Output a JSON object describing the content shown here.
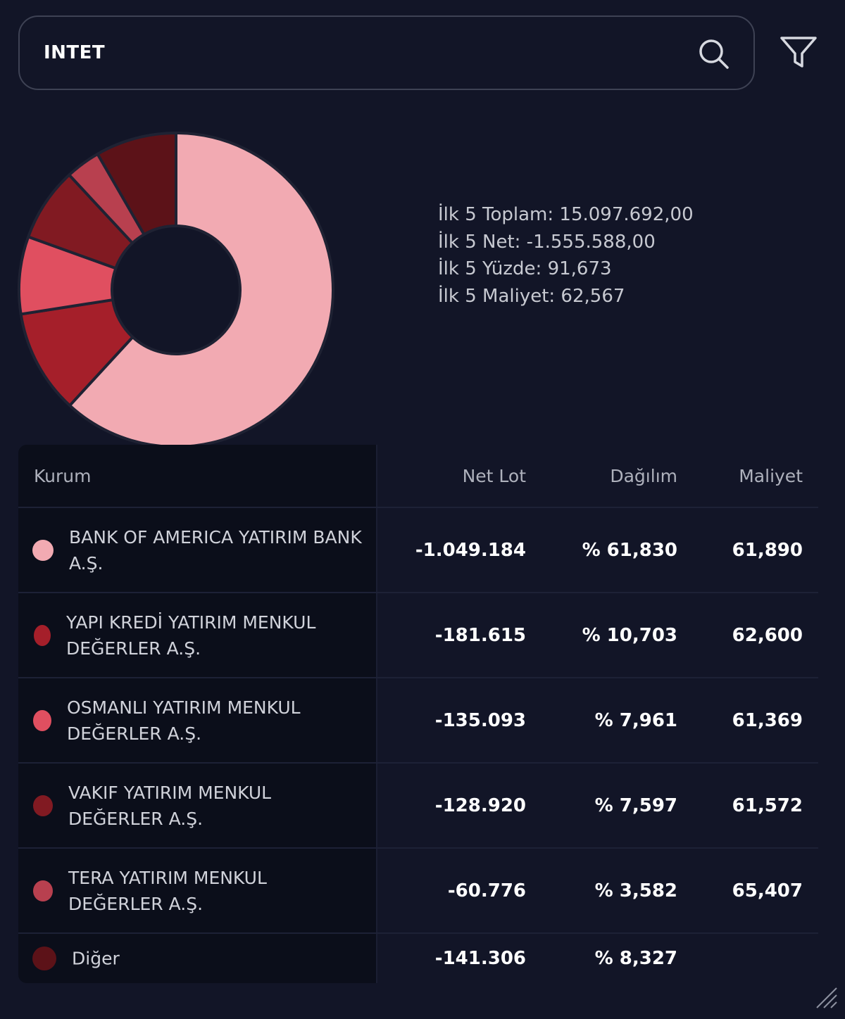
{
  "search": {
    "value": "INTET"
  },
  "stats": [
    "İlk 5 Toplam: 15.097.692,00",
    "İlk 5 Net: -1.555.588,00",
    "İlk 5 Yüzde: 91,673",
    "İlk 5 Maliyet: 62,567"
  ],
  "table": {
    "headers": {
      "kurum": "Kurum",
      "net_lot": "Net Lot",
      "dagilim": "Dağılım",
      "maliyet": "Maliyet"
    },
    "rows": [
      {
        "kurum": "BANK OF AMERICA YATIRIM BANK A.Ş.",
        "net_lot": "-1.049.184",
        "dagilim": "% 61,830",
        "maliyet": "61,890",
        "color": "#f2aab2"
      },
      {
        "kurum": "YAPI KREDİ YATIRIM MENKUL DEĞERLER A.Ş.",
        "net_lot": "-181.615",
        "dagilim": "% 10,703",
        "maliyet": "62,600",
        "color": "#a51f2a"
      },
      {
        "kurum": "OSMANLI YATIRIM MENKUL DEĞERLER A.Ş.",
        "net_lot": "-135.093",
        "dagilim": "% 7,961",
        "maliyet": "61,369",
        "color": "#e04f60"
      },
      {
        "kurum": "VAKIF YATIRIM MENKUL DEĞERLER A.Ş.",
        "net_lot": "-128.920",
        "dagilim": "% 7,597",
        "maliyet": "61,572",
        "color": "#811a22"
      },
      {
        "kurum": "TERA YATIRIM MENKUL DEĞERLER A.Ş.",
        "net_lot": "-60.776",
        "dagilim": "% 3,582",
        "maliyet": "65,407",
        "color": "#b8404f"
      },
      {
        "kurum": "Diğer",
        "net_lot": "-141.306",
        "dagilim": "% 8,327",
        "maliyet": "",
        "color": "#5c1218"
      }
    ]
  },
  "chart_data": {
    "type": "pie",
    "donut": true,
    "categories": [
      "BANK OF AMERICA YATIRIM BANK A.Ş.",
      "YAPI KREDİ YATIRIM MENKUL DEĞERLER A.Ş.",
      "OSMANLI YATIRIM MENKUL DEĞERLER A.Ş.",
      "VAKIF YATIRIM MENKUL DEĞERLER A.Ş.",
      "TERA YATIRIM MENKUL DEĞERLER A.Ş.",
      "Diğer"
    ],
    "values": [
      61.83,
      10.703,
      7.961,
      7.597,
      3.582,
      8.327
    ],
    "colors": [
      "#f2aab2",
      "#a51f2a",
      "#e04f60",
      "#811a22",
      "#b8404f",
      "#5c1218"
    ]
  },
  "icons": {
    "search": "search-icon",
    "filter": "filter-icon",
    "resize": "resize-handle-icon"
  }
}
